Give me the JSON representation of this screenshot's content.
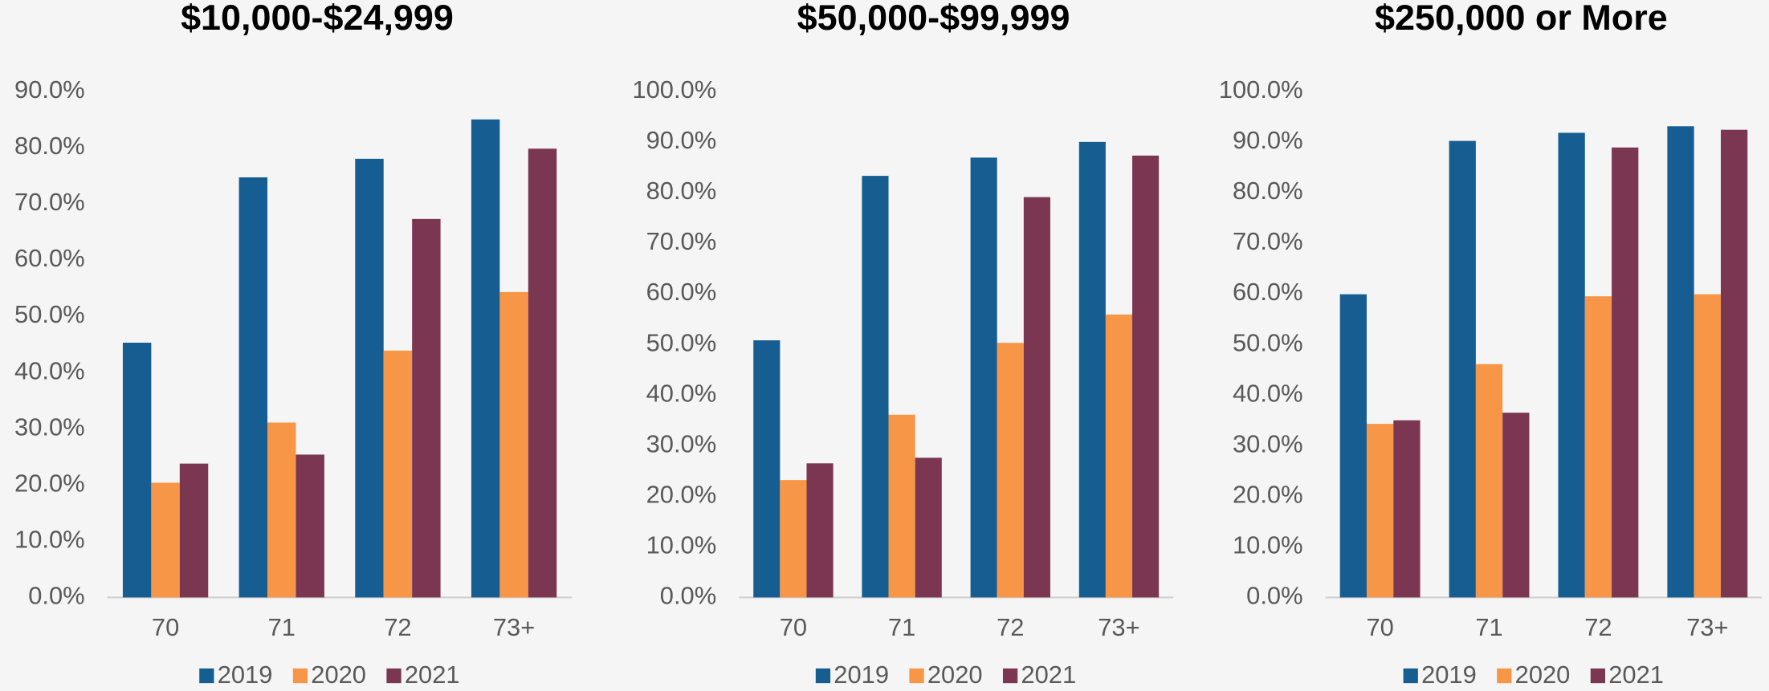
{
  "chart_data": [
    {
      "type": "bar",
      "title": "$10,000-$24,999",
      "categories": [
        "70",
        "71",
        "72",
        "73+"
      ],
      "series": [
        {
          "name": "2019",
          "color": "#165e91",
          "values": [
            45.3,
            74.7,
            78.0,
            85.0
          ]
        },
        {
          "name": "2020",
          "color": "#f79646",
          "values": [
            20.4,
            31.1,
            43.9,
            54.3
          ]
        },
        {
          "name": "2021",
          "color": "#7b3752",
          "values": [
            23.8,
            25.4,
            67.3,
            79.8
          ]
        }
      ],
      "ylim": [
        0,
        90
      ],
      "yticks": [
        {
          "value": 0,
          "label": "0.0%"
        },
        {
          "value": 10,
          "label": "10.0%"
        },
        {
          "value": 20,
          "label": "20.0%"
        },
        {
          "value": 30,
          "label": "30.0%"
        },
        {
          "value": 40,
          "label": "40.0%"
        },
        {
          "value": 50,
          "label": "50.0%"
        },
        {
          "value": 60,
          "label": "60.0%"
        },
        {
          "value": 70,
          "label": "70.0%"
        },
        {
          "value": 80,
          "label": "80.0%"
        },
        {
          "value": 90,
          "label": "90.0%"
        }
      ],
      "legend": "bottom"
    },
    {
      "type": "bar",
      "title": "$50,000-$99,999",
      "categories": [
        "70",
        "71",
        "72",
        "73+"
      ],
      "series": [
        {
          "name": "2019",
          "color": "#165e91",
          "values": [
            50.8,
            83.3,
            86.9,
            90.0
          ]
        },
        {
          "name": "2020",
          "color": "#f79646",
          "values": [
            23.2,
            36.1,
            50.3,
            55.9
          ]
        },
        {
          "name": "2021",
          "color": "#7b3752",
          "values": [
            26.5,
            27.6,
            79.1,
            87.3
          ]
        }
      ],
      "ylim": [
        0,
        100
      ],
      "yticks": [
        {
          "value": 0,
          "label": "0.0%"
        },
        {
          "value": 10,
          "label": "10.0%"
        },
        {
          "value": 20,
          "label": "20.0%"
        },
        {
          "value": 30,
          "label": "30.0%"
        },
        {
          "value": 40,
          "label": "40.0%"
        },
        {
          "value": 50,
          "label": "50.0%"
        },
        {
          "value": 60,
          "label": "60.0%"
        },
        {
          "value": 70,
          "label": "70.0%"
        },
        {
          "value": 80,
          "label": "80.0%"
        },
        {
          "value": 90,
          "label": "90.0%"
        },
        {
          "value": 100,
          "label": "100.0%"
        }
      ],
      "legend": "bottom"
    },
    {
      "type": "bar",
      "title": "$250,000 or More",
      "categories": [
        "70",
        "71",
        "72",
        "73+"
      ],
      "series": [
        {
          "name": "2019",
          "color": "#165e91",
          "values": [
            59.9,
            90.2,
            91.8,
            93.1
          ]
        },
        {
          "name": "2020",
          "color": "#f79646",
          "values": [
            34.3,
            46.1,
            59.5,
            59.9
          ]
        },
        {
          "name": "2021",
          "color": "#7b3752",
          "values": [
            35.0,
            36.5,
            88.9,
            92.4
          ]
        }
      ],
      "ylim": [
        0,
        100
      ],
      "yticks": [
        {
          "value": 0,
          "label": "0.0%"
        },
        {
          "value": 10,
          "label": "10.0%"
        },
        {
          "value": 20,
          "label": "20.0%"
        },
        {
          "value": 30,
          "label": "30.0%"
        },
        {
          "value": 40,
          "label": "40.0%"
        },
        {
          "value": 50,
          "label": "50.0%"
        },
        {
          "value": 60,
          "label": "60.0%"
        },
        {
          "value": 70,
          "label": "70.0%"
        },
        {
          "value": 80,
          "label": "80.0%"
        },
        {
          "value": 90,
          "label": "90.0%"
        },
        {
          "value": 100,
          "label": "100.0%"
        }
      ],
      "legend": "bottom"
    }
  ]
}
